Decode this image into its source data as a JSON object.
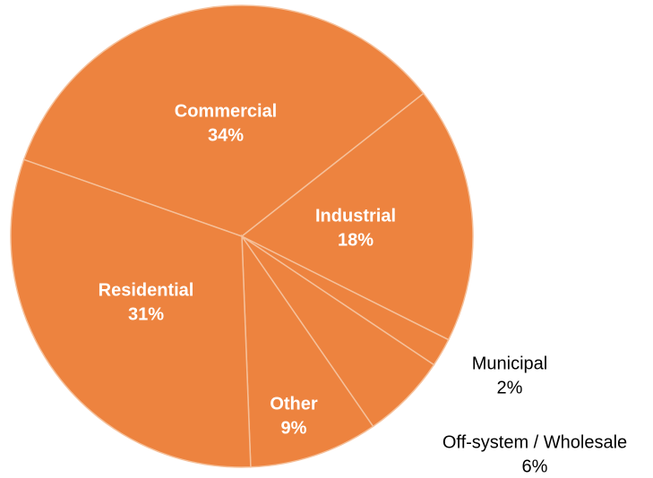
{
  "chart_data": {
    "type": "pie",
    "categories": [
      "Commercial",
      "Industrial",
      "Municipal",
      "Off-system / Wholesale",
      "Other",
      "Residential"
    ],
    "values": [
      34,
      18,
      2,
      6,
      9,
      31
    ],
    "value_labels": [
      "34%",
      "18%",
      "2%",
      "6%",
      "9%",
      "31%"
    ],
    "color": "#ED833F"
  }
}
